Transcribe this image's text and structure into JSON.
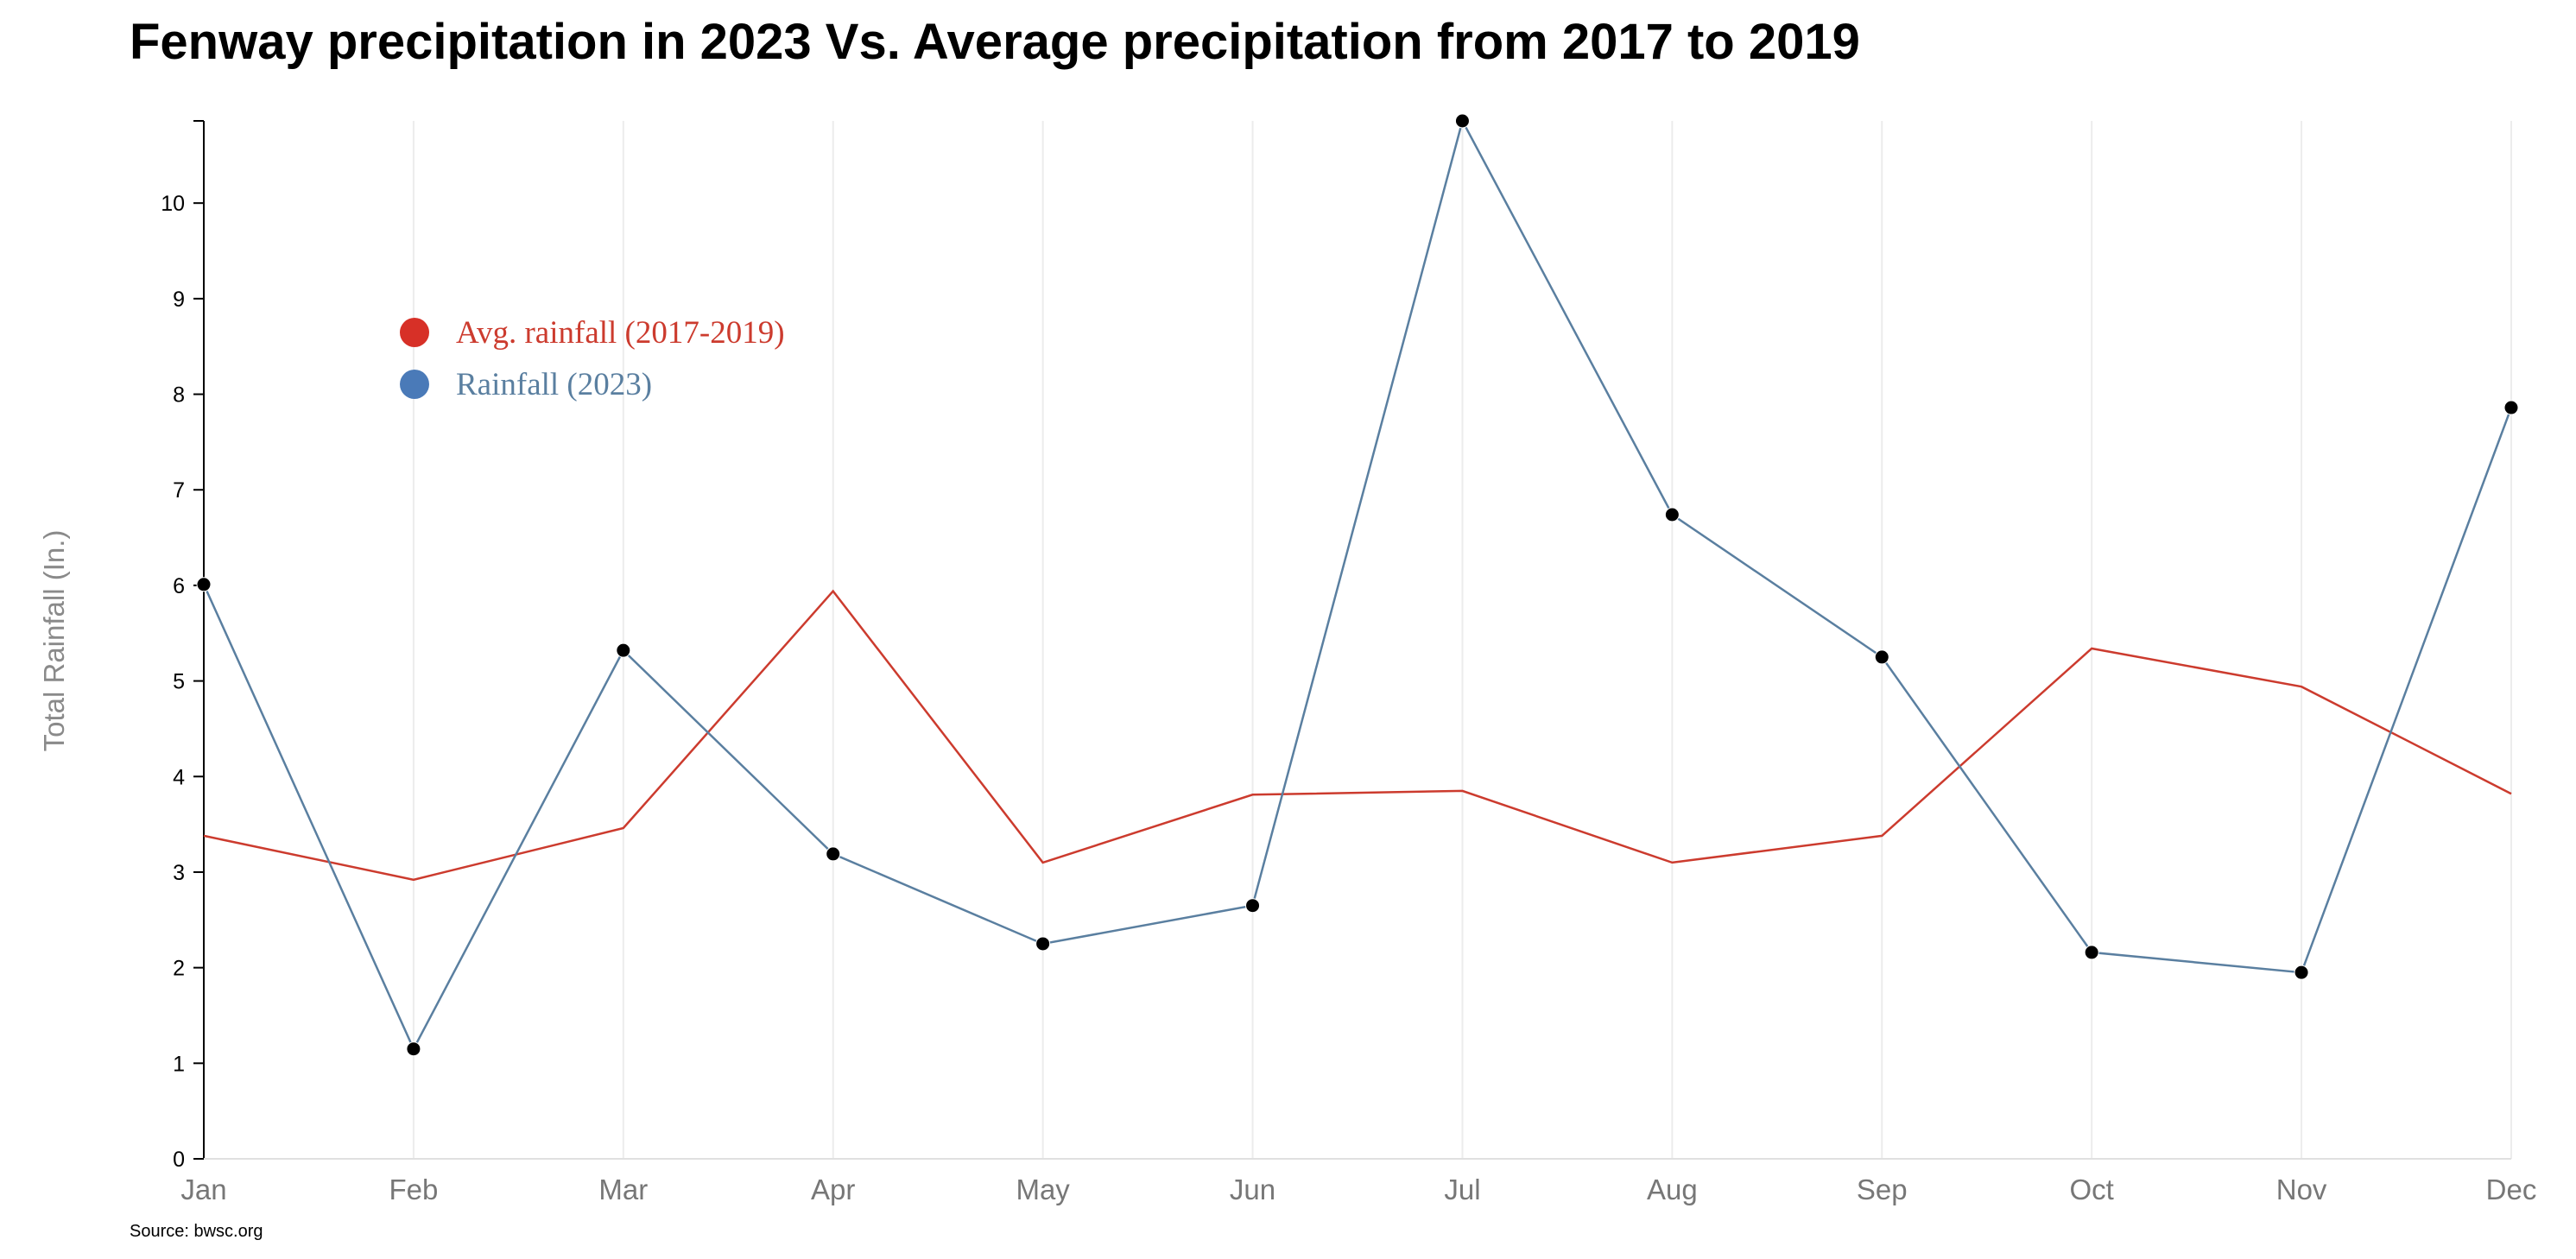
{
  "chart_data": {
    "type": "line",
    "title": "Fenway precipitation in 2023 Vs. Average precipitation from 2017 to 2019",
    "xlabel": "",
    "ylabel": "Total Rainfall (In.)",
    "categories": [
      "Jan",
      "Feb",
      "Mar",
      "Apr",
      "May",
      "Jun",
      "Jul",
      "Aug",
      "Sep",
      "Oct",
      "Nov",
      "Dec"
    ],
    "ylim": [
      0,
      10.86
    ],
    "yticks": [
      "0",
      "1",
      "2",
      "3",
      "4",
      "5",
      "6",
      "7",
      "8",
      "9",
      "10"
    ],
    "grid": "vertical",
    "legend_position": "top-left",
    "series": [
      {
        "name": "Avg. rainfall (2017-2019)",
        "color": "#cc3b2e",
        "markers": false,
        "values": [
          3.38,
          2.92,
          3.46,
          5.94,
          3.1,
          3.81,
          3.85,
          3.1,
          3.38,
          5.34,
          4.94,
          3.82
        ]
      },
      {
        "name": "Rainfall (2023)",
        "color": "#5a7fa0",
        "markers": true,
        "values": [
          6.01,
          1.15,
          5.32,
          3.19,
          2.25,
          2.65,
          10.86,
          6.74,
          5.25,
          2.16,
          1.95,
          7.86
        ]
      }
    ],
    "legend_colors": [
      "#d73027",
      "#4a7ab8"
    ]
  },
  "source": "Source: bwsc.org"
}
